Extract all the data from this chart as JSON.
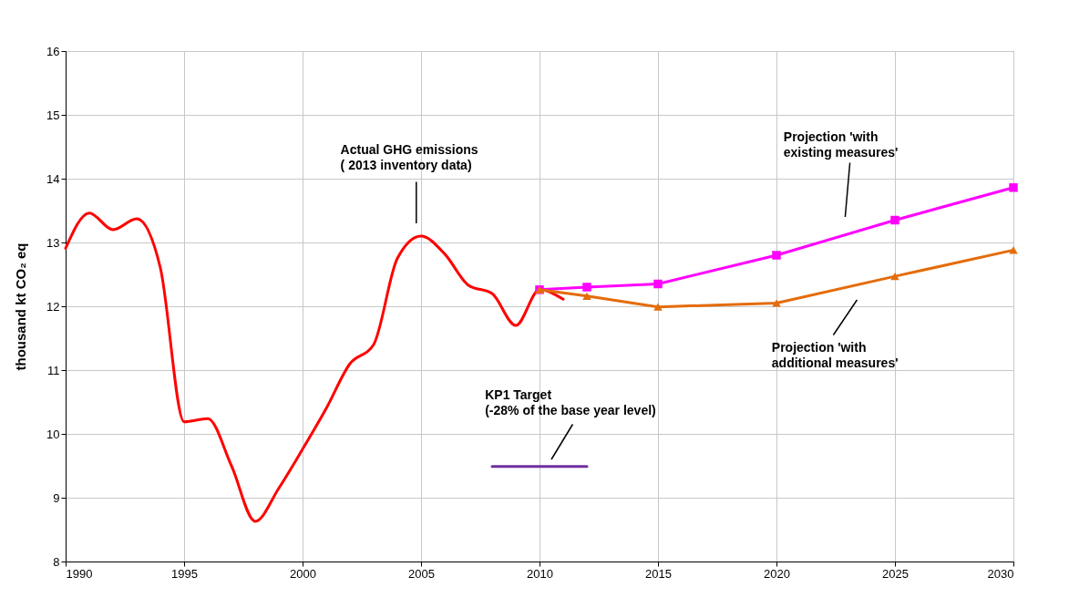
{
  "chart_data": {
    "type": "line",
    "ylabel": "thousand kt CO₂ eq",
    "xlim": [
      1990,
      2030
    ],
    "xticks": [
      1990,
      1995,
      2000,
      2005,
      2010,
      2015,
      2020,
      2025,
      2030
    ],
    "ylim": [
      8,
      16
    ],
    "yticks": [
      8,
      9,
      10,
      11,
      12,
      13,
      14,
      15,
      16
    ],
    "grid": true,
    "line_style": "solid",
    "series": [
      {
        "color": "#ff0000",
        "marker": "none",
        "x": [
          1990,
          1991,
          1992,
          1993,
          1994,
          1995,
          1996,
          1997,
          1998,
          1999,
          2000,
          2001,
          2002,
          2003,
          2004,
          2005,
          2006,
          2007,
          2008,
          2009,
          2010,
          2011
        ],
        "values": [
          12.91,
          13.46,
          13.2,
          13.37,
          12.6,
          10.19,
          10.24,
          9.5,
          8.63,
          9.15,
          9.76,
          10.4,
          11.1,
          11.4,
          12.75,
          13.1,
          12.82,
          12.33,
          12.2,
          11.7,
          12.26,
          12.11
        ]
      },
      {
        "color": "#ff00ff",
        "marker": "square",
        "x": [
          2010,
          2012,
          2015,
          2020,
          2025,
          2030
        ],
        "values": [
          12.26,
          12.3,
          12.35,
          12.8,
          13.35,
          13.86
        ]
      },
      {
        "color": "#e46c0a",
        "marker": "triangle",
        "x": [
          2010,
          2012,
          2015,
          2020,
          2025,
          2030
        ],
        "values": [
          12.26,
          12.16,
          11.99,
          12.05,
          12.47,
          12.88
        ]
      },
      {
        "color": "#7030a0",
        "marker": "none",
        "x": [
          2008,
          2012
        ],
        "values": [
          9.49,
          9.49
        ]
      }
    ],
    "annotations": [
      "Actual GHG emissions\n( 2013  inventory data)",
      "Projection 'with\nexisting measures'",
      "Projection 'with\nadditional measures'",
      "KP1 Target\n(-28% of the base year level)"
    ]
  }
}
